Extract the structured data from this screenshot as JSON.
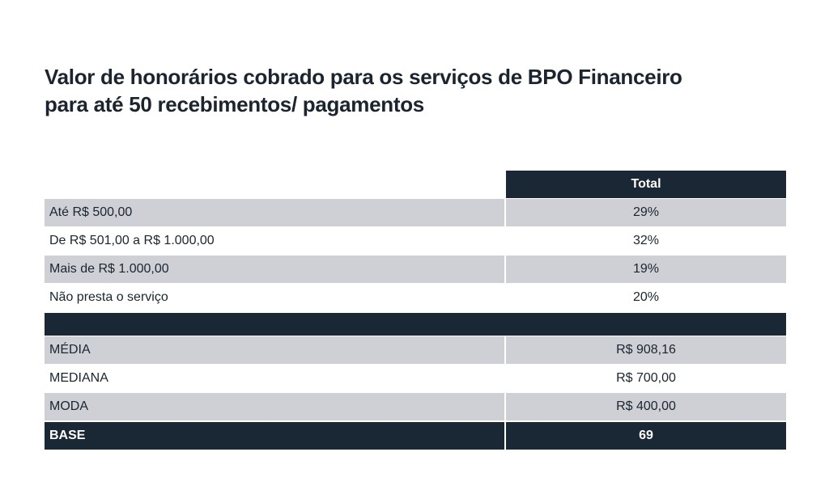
{
  "title_line1": "Valor de honorários cobrado para os serviços de BPO Financeiro",
  "title_line2": "para até 50 recebimentos/ pagamentos",
  "table": {
    "header": "Total",
    "rows": [
      {
        "label": "Até R$ 500,00",
        "value": "29%"
      },
      {
        "label": "De R$ 501,00 a R$ 1.000,00",
        "value": "32%"
      },
      {
        "label": "Mais de R$ 1.000,00",
        "value": "19%"
      },
      {
        "label": "Não presta o serviço",
        "value": "20%"
      }
    ],
    "stats": [
      {
        "label": "MÉDIA",
        "value": "R$ 908,16"
      },
      {
        "label": "MEDIANA",
        "value": "R$ 700,00"
      },
      {
        "label": "MODA",
        "value": "R$ 400,00"
      }
    ],
    "base": {
      "label": "BASE",
      "value": "69"
    }
  },
  "colors": {
    "dark": "#1a2734",
    "grey": "#cfd0d5"
  }
}
